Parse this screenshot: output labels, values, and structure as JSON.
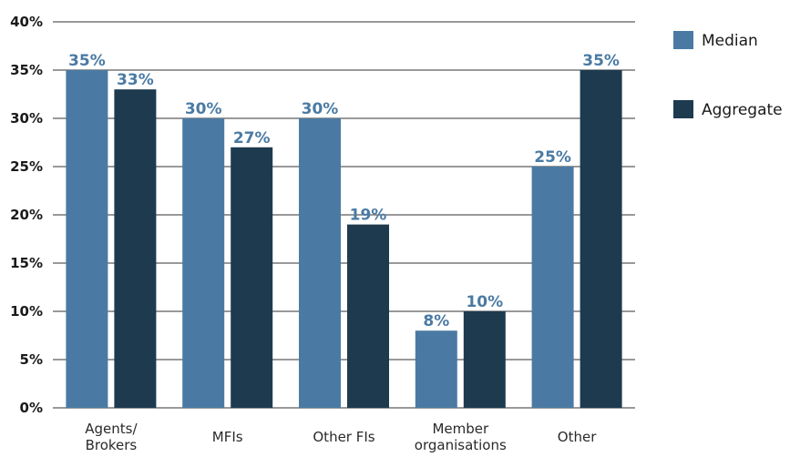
{
  "chart_data": {
    "type": "bar",
    "categories": [
      "Agents/\nBrokers",
      "MFIs",
      "Other FIs",
      "Member\norganisations",
      "Other"
    ],
    "series": [
      {
        "name": "Median",
        "values": [
          35,
          30,
          30,
          8,
          25
        ],
        "labels": [
          "35%",
          "30%",
          "30%",
          "8%",
          "25%"
        ],
        "color": "#4a7aa3"
      },
      {
        "name": "Aggregate",
        "values": [
          33,
          27,
          19,
          10,
          35
        ],
        "labels": [
          "33%",
          "27%",
          "19%",
          "10%",
          "35%"
        ],
        "color": "#1e3a4f"
      }
    ],
    "ylim": [
      0,
      40
    ],
    "yticks": [
      0,
      5,
      10,
      15,
      20,
      25,
      30,
      35,
      40
    ],
    "ytick_labels": [
      "0%",
      "5%",
      "10%",
      "15%",
      "20%",
      "25%",
      "30%",
      "35%",
      "40%"
    ],
    "title": "",
    "xlabel": "",
    "ylabel": "",
    "grid": true,
    "legend_position": "right"
  }
}
